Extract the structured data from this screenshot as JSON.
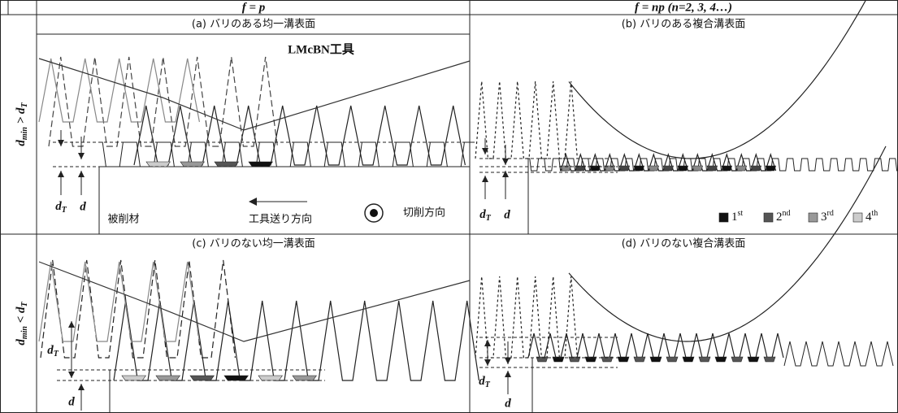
{
  "columns": [
    "f = p",
    "f = np (n=2, 3, 4…)"
  ],
  "rows": [
    [
      "d",
      {
        "sub": "min"
      },
      " > d",
      {
        "sub": "T"
      }
    ],
    [
      "d",
      {
        "sub": "min"
      },
      " < d",
      {
        "sub": "T"
      }
    ]
  ],
  "panels": [
    {
      "title": "(a) バリのある均一溝表面",
      "dT": [
        "d",
        {
          "sub": "T"
        }
      ],
      "d": "d",
      "tool": "LMcBN工具",
      "workpiece": "被削材",
      "feed": "工具送り方向",
      "cutting": "切削方向"
    },
    {
      "title": "(b) バリのある複合溝表面",
      "dT": [
        "d",
        {
          "sub": "T"
        }
      ],
      "d": "d",
      "legend": [
        [
          "1",
          {
            "sup": "st"
          }
        ],
        [
          "2",
          {
            "sup": "nd"
          }
        ],
        [
          "3",
          {
            "sup": "rd"
          }
        ],
        [
          "4",
          {
            "sup": "th"
          }
        ]
      ]
    },
    {
      "title": "(c) バリのない均一溝表面",
      "dT": [
        "d",
        {
          "sub": "T"
        }
      ],
      "d": "d"
    },
    {
      "title": "(d) バリのない複合溝表面",
      "dT": [
        "d",
        {
          "sub": "T"
        }
      ],
      "d": "d"
    }
  ]
}
